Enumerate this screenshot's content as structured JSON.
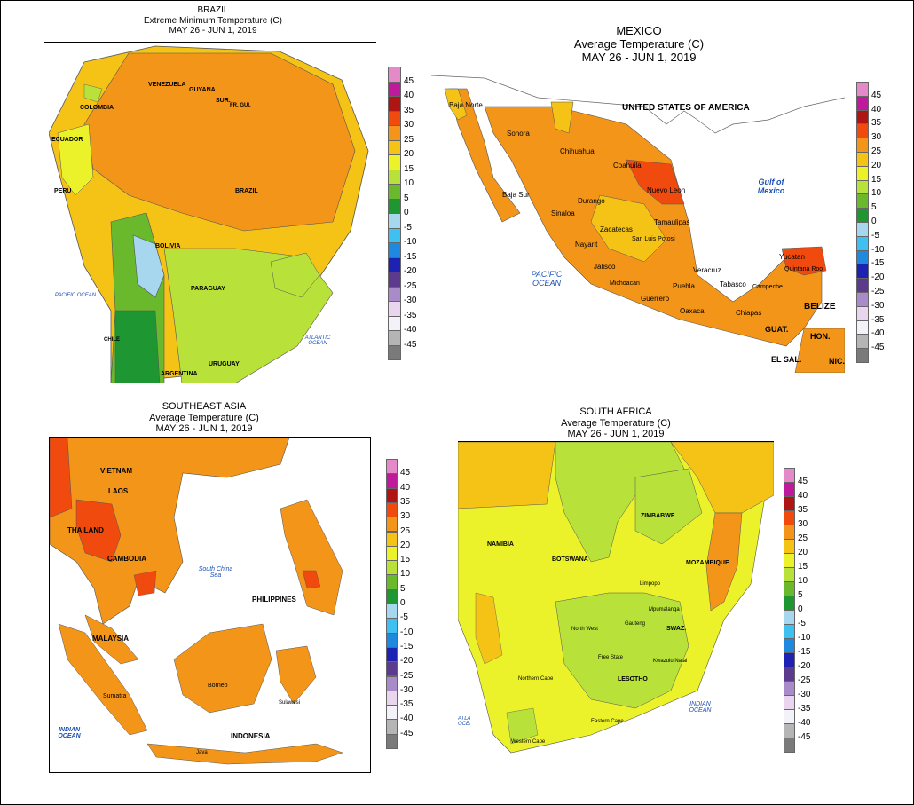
{
  "legend_colors": [
    "#e58ac9",
    "#c01a9c",
    "#b01515",
    "#f04a0f",
    "#f39519",
    "#f5c316",
    "#ecf22a",
    "#b8e23a",
    "#6ab92d",
    "#1e9632",
    "#a6d7ef",
    "#3ec0f0",
    "#1f88df",
    "#1d22b3",
    "#5c3a8d",
    "#a98bc9",
    "#ead5ef",
    "#f2f2f8",
    "#b5b5b5",
    "#7a7a7a"
  ],
  "legend_labels": [
    "45",
    "40",
    "35",
    "30",
    "25",
    "20",
    "15",
    "10",
    "5",
    "0",
    "-5",
    "-10",
    "-15",
    "-20",
    "-25",
    "-30",
    "-35",
    "-40",
    "-45"
  ],
  "panels": {
    "brazil": {
      "title_line1": "BRAZIL",
      "title_line2": "Extreme Minimum Temperature (C)",
      "title_line3": "MAY 26 - JUN 1, 2019",
      "labels": [
        "VENEZUELA",
        "GUYANA",
        "SUR.",
        "FR. GUI.",
        "COLOMBIA",
        "ECUADOR",
        "PERU",
        "BRAZIL",
        "BOLIVIA",
        "PARAGUAY",
        "URUGUAY",
        "ARGENTINA",
        "CHILE"
      ],
      "oceans": [
        "PACIFIC OCEAN",
        "ATLANTIC OCEAN"
      ]
    },
    "mexico": {
      "title_line1": "MEXICO",
      "title_line2": "Average Temperature (C)",
      "title_line3": "MAY 26 - JUN 1, 2019",
      "labels": [
        "UNITED STATES OF AMERICA",
        "Sonora",
        "Chihuahua",
        "Coahuila",
        "Nuevo Leon",
        "Tamaulipas",
        "Durango",
        "Sinaloa",
        "Zacatecas",
        "San Luis Potosi",
        "Nayarit",
        "Jalisco",
        "Michoacan",
        "Guerrero",
        "Oaxaca",
        "Puebla",
        "Veracruz",
        "Tabasco",
        "Campeche",
        "Yucatan",
        "Quintana Roo",
        "Chiapas",
        "BELIZE",
        "GUAT.",
        "HON.",
        "EL SAL.",
        "NIC.",
        "Baja Norte",
        "Baja Sur"
      ],
      "oceans": [
        "PACIFIC OCEAN",
        "Gulf of Mexico"
      ]
    },
    "seasia": {
      "title_line1": "SOUTHEAST ASIA",
      "title_line2": "Average Temperature (C)",
      "title_line3": "MAY 26 - JUN 1, 2019",
      "labels": [
        "VIETNAM",
        "LAOS",
        "THAILAND",
        "CAMBODIA",
        "MALAYSIA",
        "PHILIPPINES",
        "INDONESIA",
        "Borneo",
        "Sumatra",
        "Java",
        "Sulawesi"
      ],
      "oceans": [
        "South China Sea",
        "INDIAN OCEAN"
      ]
    },
    "safrica": {
      "title_line1": "SOUTH AFRICA",
      "title_line2": "Average Temperature (C)",
      "title_line3": "MAY 26 - JUN 1, 2019",
      "labels": [
        "NAMIBIA",
        "BOTSWANA",
        "ZIMBABWE",
        "MOZAMBIQUE",
        "North West",
        "Free State",
        "LESOTHO",
        "SWAZ.",
        "Northern Cape",
        "Western Cape",
        "Eastern Cape",
        "Gauteng",
        "Limpopo",
        "Mpumalanga",
        "Kwazulu Natal"
      ],
      "oceans": [
        "INDIAN OCEAN",
        "ATLANTIC OCEAN"
      ]
    }
  }
}
